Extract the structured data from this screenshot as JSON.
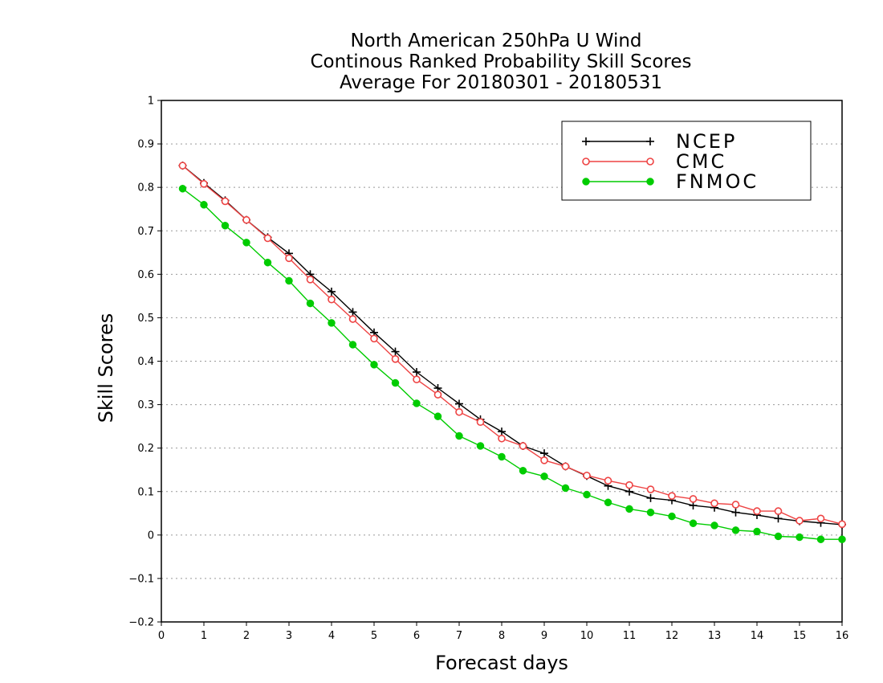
{
  "chart_data": {
    "type": "line",
    "title": [
      "North American 250hPa U Wind",
      "Continous Ranked Probability Skill Scores",
      "Average For 20180301 - 20180531"
    ],
    "xlabel": "Forecast days",
    "ylabel": "Skill Scores",
    "xlim": [
      0,
      16
    ],
    "ylim": [
      -0.2,
      1
    ],
    "x_ticks": [
      0,
      1,
      2,
      3,
      4,
      5,
      6,
      7,
      8,
      9,
      10,
      11,
      12,
      13,
      14,
      15,
      16
    ],
    "y_ticks": [
      -0.2,
      -0.1,
      0,
      0.1,
      0.2,
      0.3,
      0.4,
      0.5,
      0.6,
      0.7,
      0.8,
      0.9,
      1
    ],
    "grid": "horizontal dotted",
    "legend_position": "top-right",
    "x": [
      0.5,
      1,
      1.5,
      2,
      2.5,
      3,
      3.5,
      4,
      4.5,
      5,
      5.5,
      6,
      6.5,
      7,
      7.5,
      8,
      8.5,
      9,
      9.5,
      10,
      10.5,
      11,
      11.5,
      12,
      12.5,
      13,
      13.5,
      14,
      14.5,
      15,
      15.5,
      16
    ],
    "series": [
      {
        "name": "NCEP",
        "color": "#000000",
        "marker": "plus",
        "values": [
          0.85,
          0.81,
          0.77,
          0.725,
          0.685,
          0.648,
          0.6,
          0.56,
          0.513,
          0.466,
          0.422,
          0.375,
          0.338,
          0.302,
          0.266,
          0.238,
          0.205,
          0.188,
          0.158,
          0.136,
          0.113,
          0.1,
          0.085,
          0.08,
          0.068,
          0.063,
          0.052,
          0.046,
          0.038,
          0.032,
          0.028,
          0.024
        ]
      },
      {
        "name": "CMC",
        "color": "#ee4444",
        "marker": "open-circle",
        "values": [
          0.85,
          0.808,
          0.768,
          0.725,
          0.683,
          0.637,
          0.588,
          0.542,
          0.497,
          0.452,
          0.405,
          0.358,
          0.323,
          0.283,
          0.26,
          0.222,
          0.205,
          0.172,
          0.158,
          0.137,
          0.125,
          0.115,
          0.105,
          0.09,
          0.083,
          0.073,
          0.07,
          0.055,
          0.055,
          0.033,
          0.038,
          0.025
        ]
      },
      {
        "name": "FNMOC",
        "color": "#00cc00",
        "marker": "filled-circle",
        "values": [
          0.797,
          0.76,
          0.712,
          0.673,
          0.627,
          0.585,
          0.533,
          0.488,
          0.438,
          0.392,
          0.35,
          0.303,
          0.273,
          0.228,
          0.205,
          0.18,
          0.148,
          0.135,
          0.108,
          0.093,
          0.075,
          0.06,
          0.052,
          0.043,
          0.027,
          0.022,
          0.011,
          0.008,
          -0.003,
          -0.005,
          -0.01,
          -0.01
        ]
      }
    ]
  }
}
